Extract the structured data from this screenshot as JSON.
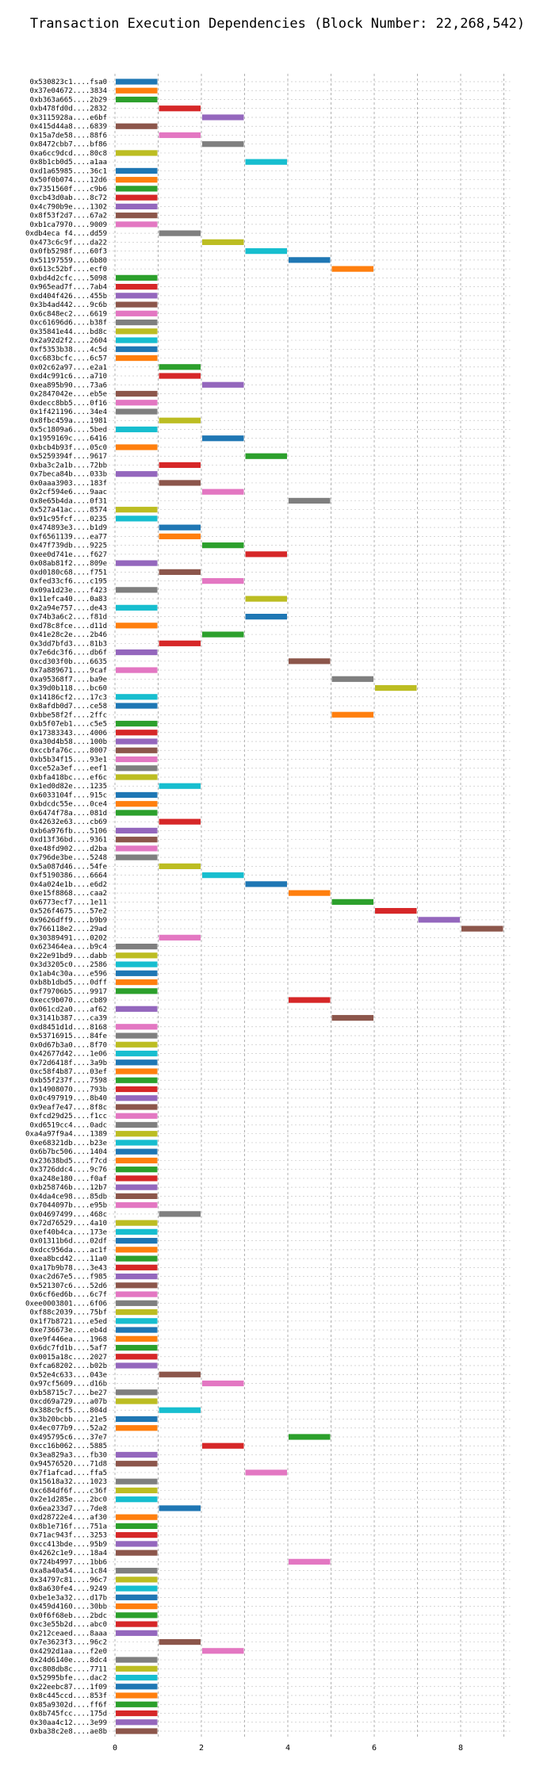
{
  "title": "Transaction Execution Dependencies (Block Number: 22,268,542)",
  "chart_data": {
    "type": "bar",
    "orientation": "horizontal-gantt",
    "title": "Transaction Execution Dependencies (Block Number: 22,268,542)",
    "xlabel": "",
    "ylabel": "",
    "xlim": [
      0,
      9
    ],
    "xticks": [
      "0",
      "2",
      "4",
      "6",
      "8"
    ],
    "grid": true,
    "palette": {
      "blue": "#1f77b4",
      "orange": "#ff7f0e",
      "green": "#2ca02c",
      "red": "#d62728",
      "purple": "#9467bd",
      "brown": "#8c564b",
      "pink": "#e377c2",
      "gray": "#7f7f7f",
      "olive": "#bcbd22",
      "cyan": "#17becf"
    },
    "rows": [
      [
        "0x530823c1....fsa0",
        0,
        "blue"
      ],
      [
        "0x37e04672....3834",
        0,
        "orange"
      ],
      [
        "0xb363a665....2b29",
        0,
        "green"
      ],
      [
        "0xb478fd0d....2832",
        1,
        "red"
      ],
      [
        "0x3115928a....e6bf",
        2,
        "purple"
      ],
      [
        "0x415d44a8....6839",
        0,
        "brown"
      ],
      [
        "0x15a7de58....88f6",
        1,
        "pink"
      ],
      [
        "0x8472cbb7....bf86",
        2,
        "gray"
      ],
      [
        "0xa6cc9dcd....80c8",
        0,
        "olive"
      ],
      [
        "0x8b1cb0d5....a1aa",
        3,
        "cyan"
      ],
      [
        "0xd1a65985....36c1",
        0,
        "blue"
      ],
      [
        "0x50f0b074....12d6",
        0,
        "orange"
      ],
      [
        "0x7351560f....c9b6",
        0,
        "green"
      ],
      [
        "0xcb43d0ab....8c72",
        0,
        "red"
      ],
      [
        "0x4c790b9e....1302",
        0,
        "purple"
      ],
      [
        "0x8f53f2d7....67a2",
        0,
        "brown"
      ],
      [
        "0xb1ca7970....9009",
        0,
        "pink"
      ],
      [
        "0xdb4eca f4....dd59",
        1,
        "gray"
      ],
      [
        "0x473c6c9f....da22",
        2,
        "olive"
      ],
      [
        "0x0fb5298f....60f3",
        3,
        "cyan"
      ],
      [
        "0x51197559....6b80",
        4,
        "blue"
      ],
      [
        "0x613c52bf....ecf0",
        5,
        "orange"
      ],
      [
        "0xbd4d2cfc....5098",
        0,
        "green"
      ],
      [
        "0x965ead7f....7ab4",
        0,
        "red"
      ],
      [
        "0xd404f426....455b",
        0,
        "purple"
      ],
      [
        "0x3b4ad442....9c6b",
        0,
        "brown"
      ],
      [
        "0x6c848ec2....6619",
        0,
        "pink"
      ],
      [
        "0xc61696d6....b38f",
        0,
        "gray"
      ],
      [
        "0x35841e44....bd8c",
        0,
        "olive"
      ],
      [
        "0x2a92d2f2....2604",
        0,
        "cyan"
      ],
      [
        "0xf5353b38....4c5d",
        0,
        "blue"
      ],
      [
        "0xc683bcfc....6c57",
        0,
        "orange"
      ],
      [
        "0x02c62a97....e2a1",
        1,
        "green"
      ],
      [
        "0xd4c991c6....a710",
        1,
        "red"
      ],
      [
        "0xea895b90....73a6",
        2,
        "purple"
      ],
      [
        "0x2847042e....eb5e",
        0,
        "brown"
      ],
      [
        "0xdecc8bb5....0f16",
        0,
        "pink"
      ],
      [
        "0x1f421196....34e4",
        0,
        "gray"
      ],
      [
        "0x8fbc459a....1981",
        1,
        "olive"
      ],
      [
        "0x5c1809a6....5bed",
        0,
        "cyan"
      ],
      [
        "0x1959169c....6416",
        2,
        "blue"
      ],
      [
        "0xbcb4b93f....05c0",
        0,
        "orange"
      ],
      [
        "0x5259394f....9617",
        3,
        "green"
      ],
      [
        "0xba3c2a1b....72bb",
        1,
        "red"
      ],
      [
        "0x7beca84b....033b",
        0,
        "purple"
      ],
      [
        "0x0aaa3903....183f",
        1,
        "brown"
      ],
      [
        "0x2cf594e6....9aac",
        2,
        "pink"
      ],
      [
        "0x8e65b4da....0f31",
        4,
        "gray"
      ],
      [
        "0x527a41ac....8574",
        0,
        "olive"
      ],
      [
        "0x91c95fcf....0235",
        0,
        "cyan"
      ],
      [
        "0x474893e3....b1d9",
        1,
        "blue"
      ],
      [
        "0xf6561139....ea77",
        1,
        "orange"
      ],
      [
        "0x47f739db....9225",
        2,
        "green"
      ],
      [
        "0xee0d741e....f627",
        3,
        "red"
      ],
      [
        "0x08ab81f2....809e",
        0,
        "purple"
      ],
      [
        "0xd0180c68....f751",
        1,
        "brown"
      ],
      [
        "0xfed33cf6....c195",
        2,
        "pink"
      ],
      [
        "0x09a1d23e....f423",
        0,
        "gray"
      ],
      [
        "0x11efca40....0a83",
        3,
        "olive"
      ],
      [
        "0x2a94e757....de43",
        0,
        "cyan"
      ],
      [
        "0x74b3a6c2....f81d",
        3,
        "blue"
      ],
      [
        "0xd78c8fce....d11d",
        0,
        "orange"
      ],
      [
        "0x41e28c2e....2b46",
        2,
        "green"
      ],
      [
        "0x3dd7bfd3....81b3",
        1,
        "red"
      ],
      [
        "0x7e6dc3f6....db6f",
        0,
        "purple"
      ],
      [
        "0xcd303f0b....6635",
        4,
        "brown"
      ],
      [
        "0x7a889671....9caf",
        0,
        "pink"
      ],
      [
        "0xa95368f7....ba9e",
        5,
        "gray"
      ],
      [
        "0x39d0b118....bc60",
        6,
        "olive"
      ],
      [
        "0x14186cf2....17c3",
        0,
        "cyan"
      ],
      [
        "0x8afdb0d7....ce58",
        0,
        "blue"
      ],
      [
        "0xbbe58f2f....2ffc",
        5,
        "orange"
      ],
      [
        "0xb5f07eb1....c5e5",
        0,
        "green"
      ],
      [
        "0x17383343....4006",
        0,
        "red"
      ],
      [
        "0xa30d4b58....100b",
        0,
        "purple"
      ],
      [
        "0xccbfa76c....8007",
        0,
        "brown"
      ],
      [
        "0xb5b34f15....93e1",
        0,
        "pink"
      ],
      [
        "0xce52a3ef....eef1",
        0,
        "gray"
      ],
      [
        "0xbfa418bc....ef6c",
        0,
        "olive"
      ],
      [
        "0x1ed0d82e....1235",
        1,
        "cyan"
      ],
      [
        "0x6033104f....915c",
        0,
        "blue"
      ],
      [
        "0xbdcdc55e....0ce4",
        0,
        "orange"
      ],
      [
        "0x6474f78a....081d",
        0,
        "green"
      ],
      [
        "0x42632e63....cb69",
        1,
        "red"
      ],
      [
        "0xb6a976fb....5106",
        0,
        "purple"
      ],
      [
        "0xd13f36bd....9361",
        0,
        "brown"
      ],
      [
        "0xe48fd902....d2ba",
        0,
        "pink"
      ],
      [
        "0x796de3be....5248",
        0,
        "gray"
      ],
      [
        "0x5a087d46....54fe",
        1,
        "olive"
      ],
      [
        "0xf5190386....6664",
        2,
        "cyan"
      ],
      [
        "0x4a024e1b....e6d2",
        3,
        "blue"
      ],
      [
        "0xe15f8868....caa2",
        4,
        "orange"
      ],
      [
        "0x6773ecf7....1e11",
        5,
        "green"
      ],
      [
        "0x526f4675....57e2",
        6,
        "red"
      ],
      [
        "0x9626dff9....b9b9",
        7,
        "purple"
      ],
      [
        "0x766118e2....29ad",
        8,
        "brown"
      ],
      [
        "0x30389491....0202",
        1,
        "pink"
      ],
      [
        "0x623464ea....b9c4",
        0,
        "gray"
      ],
      [
        "0x22e91bd9....dabb",
        0,
        "olive"
      ],
      [
        "0x3d3205c0....2586",
        0,
        "cyan"
      ],
      [
        "0x1ab4c30a....e596",
        0,
        "blue"
      ],
      [
        "0xb8b1dbd5....0dff",
        0,
        "orange"
      ],
      [
        "0xf79706b5....9917",
        0,
        "green"
      ],
      [
        "0xecc9b070....cb89",
        4,
        "red"
      ],
      [
        "0x061cd2a0....af62",
        0,
        "purple"
      ],
      [
        "0x3141b387....ca39",
        5,
        "brown"
      ],
      [
        "0xd8451d1d....8168",
        0,
        "pink"
      ],
      [
        "0x53716915....84fe",
        0,
        "gray"
      ],
      [
        "0x0d67b3a0....8f70",
        0,
        "olive"
      ],
      [
        "0x42677d42....1e06",
        0,
        "cyan"
      ],
      [
        "0x72d6418f....3a9b",
        0,
        "blue"
      ],
      [
        "0xc58f4b87....03ef",
        0,
        "orange"
      ],
      [
        "0xb55f237f....7598",
        0,
        "green"
      ],
      [
        "0x14908070....793b",
        0,
        "red"
      ],
      [
        "0x0c497919....8b40",
        0,
        "purple"
      ],
      [
        "0x9eaf7e47....8f8c",
        0,
        "brown"
      ],
      [
        "0xfcd29d25....f1cc",
        0,
        "pink"
      ],
      [
        "0xd6519cc4....0adc",
        0,
        "gray"
      ],
      [
        "0xa4a97f9a4....1389",
        0,
        "olive"
      ],
      [
        "0xe68321db....b23e",
        0,
        "cyan"
      ],
      [
        "0x6b7bc506....1404",
        0,
        "blue"
      ],
      [
        "0x23638bd5....f7cd",
        0,
        "orange"
      ],
      [
        "0x3726ddc4....9c76",
        0,
        "green"
      ],
      [
        "0xa248e180....f0af",
        0,
        "red"
      ],
      [
        "0xb258746b....12b7",
        0,
        "purple"
      ],
      [
        "0x4da4ce98....85db",
        0,
        "brown"
      ],
      [
        "0x7044097b....e95b",
        0,
        "pink"
      ],
      [
        "0x04697499....468c",
        1,
        "gray"
      ],
      [
        "0x72d76529....4a10",
        0,
        "olive"
      ],
      [
        "0xef40b4ca....173e",
        0,
        "cyan"
      ],
      [
        "0x01311b6d....02df",
        0,
        "blue"
      ],
      [
        "0xdcc956da....ac1f",
        0,
        "orange"
      ],
      [
        "0xea8bcd42....11a0",
        0,
        "green"
      ],
      [
        "0xa17b9b78....3e43",
        0,
        "red"
      ],
      [
        "0xac2d67e5....f985",
        0,
        "purple"
      ],
      [
        "0x521307c6....52d6",
        0,
        "brown"
      ],
      [
        "0x6cf6ed6b....6c7f",
        0,
        "pink"
      ],
      [
        "0xee0003801....6f06",
        0,
        "gray"
      ],
      [
        "0xf88c2039....75bf",
        0,
        "olive"
      ],
      [
        "0x1f7b8721....e5ed",
        0,
        "cyan"
      ],
      [
        "0xe736673e....eb4d",
        0,
        "blue"
      ],
      [
        "0xe9f446ea....1968",
        0,
        "orange"
      ],
      [
        "0x6dc7fd1b....5af7",
        0,
        "green"
      ],
      [
        "0x0015a18c....2027",
        0,
        "red"
      ],
      [
        "0xfca68202....b02b",
        0,
        "purple"
      ],
      [
        "0x52e4c633....043e",
        1,
        "brown"
      ],
      [
        "0x97cf5609....d16b",
        2,
        "pink"
      ],
      [
        "0xb58715c7....be27",
        0,
        "gray"
      ],
      [
        "0xcd69a729....a07b",
        0,
        "olive"
      ],
      [
        "0x388c9cf5....804d",
        1,
        "cyan"
      ],
      [
        "0x3b20bcbb....21e5",
        0,
        "blue"
      ],
      [
        "0x4ec077b9....52a2",
        0,
        "orange"
      ],
      [
        "0x495795c6....37e7",
        4,
        "green"
      ],
      [
        "0xcc16b062....5885",
        2,
        "red"
      ],
      [
        "0x3ea829a3....fb30",
        0,
        "purple"
      ],
      [
        "0x94576520....71d8",
        0,
        "brown"
      ],
      [
        "0x7f1afcad....ffa5",
        3,
        "pink"
      ],
      [
        "0x15618a32....1023",
        0,
        "gray"
      ],
      [
        "0xc684df6f....c36f",
        0,
        "olive"
      ],
      [
        "0x2e1d285e....2bc0",
        0,
        "cyan"
      ],
      [
        "0x6ea233d7....7de8",
        1,
        "blue"
      ],
      [
        "0xd28722e4....af30",
        0,
        "orange"
      ],
      [
        "0x8b1e716f....751a",
        0,
        "green"
      ],
      [
        "0x71ac943f....3253",
        0,
        "red"
      ],
      [
        "0xcc413bde....95b9",
        0,
        "purple"
      ],
      [
        "0x4262c1e9....18a4",
        0,
        "brown"
      ],
      [
        "0x724b4997....1bb6",
        4,
        "pink"
      ],
      [
        "0xa8a40a54....1c84",
        0,
        "gray"
      ],
      [
        "0x34797c81....96c7",
        0,
        "olive"
      ],
      [
        "0x8a630fe4....9249",
        0,
        "cyan"
      ],
      [
        "0xbe1e3a32....d17b",
        0,
        "blue"
      ],
      [
        "0x459d4160....30bb",
        0,
        "orange"
      ],
      [
        "0x0f6f68eb....2bdc",
        0,
        "green"
      ],
      [
        "0xc3e55b2d....abc0",
        0,
        "red"
      ],
      [
        "0x212ceaed....8aaa",
        0,
        "purple"
      ],
      [
        "0x7e3623f3....96c2",
        1,
        "brown"
      ],
      [
        "0x4292d1aa....f2e0",
        2,
        "pink"
      ],
      [
        "0x24d6140e....8dc4",
        0,
        "gray"
      ],
      [
        "0xc808db8c....7711",
        0,
        "olive"
      ],
      [
        "0x52995bfe....dac2",
        0,
        "cyan"
      ],
      [
        "0x22eebc87....1f09",
        0,
        "blue"
      ],
      [
        "0x8c445ccd....853f",
        0,
        "orange"
      ],
      [
        "0x85a9302d....ff6f",
        0,
        "green"
      ],
      [
        "0x8b745fcc....175d",
        0,
        "red"
      ],
      [
        "0x30aa4c12....3e99",
        0,
        "purple"
      ],
      [
        "0xba38c2e8....ae8b",
        0,
        "brown"
      ]
    ]
  }
}
